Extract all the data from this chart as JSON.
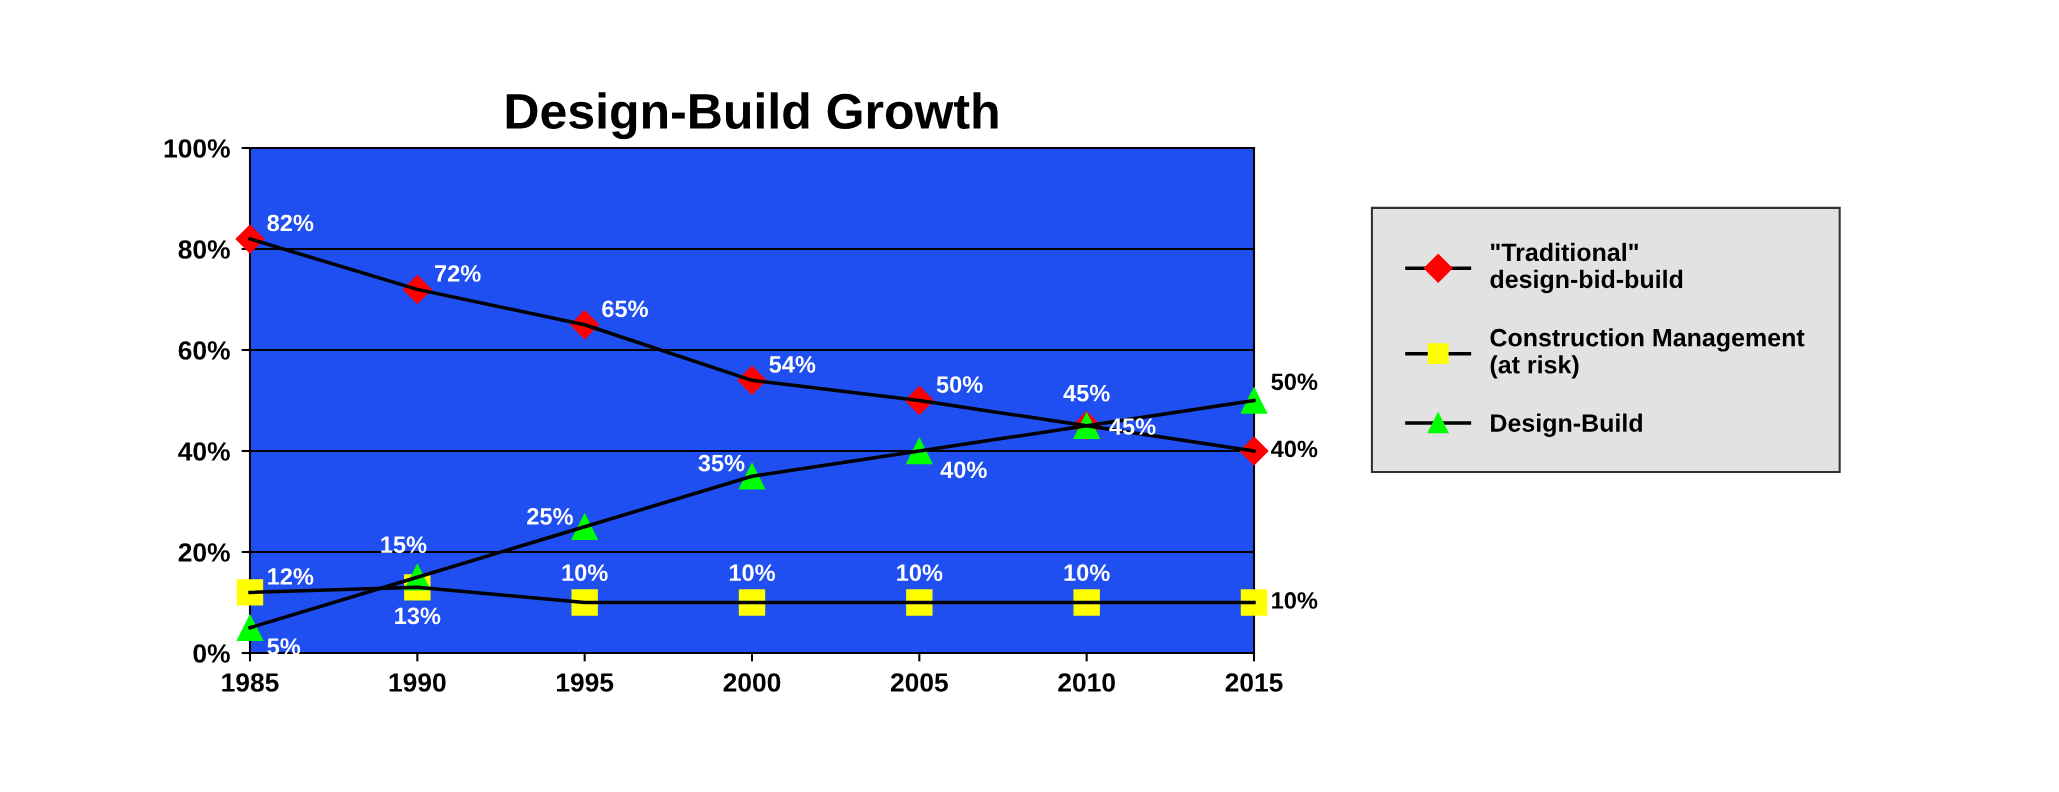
{
  "chart_data": {
    "type": "line",
    "title": "Design-Build Growth",
    "x": [
      1985,
      1990,
      1995,
      2000,
      2005,
      2010,
      2015
    ],
    "series": [
      {
        "name": "\"Traditional\"\ndesign-bid-build",
        "color": "#ff0000",
        "marker": "diamond",
        "values": [
          82,
          72,
          65,
          54,
          50,
          45,
          40
        ],
        "value_labels": [
          "82%",
          "72%",
          "65%",
          "54%",
          "50%",
          "45%",
          "40%"
        ]
      },
      {
        "name": "Construction Management\n(at risk)",
        "color": "#ffff00",
        "marker": "square",
        "values": [
          12,
          13,
          10,
          10,
          10,
          10,
          10
        ],
        "value_labels": [
          "12%",
          "13%",
          "10%",
          "10%",
          "10%",
          "10%",
          "10%"
        ]
      },
      {
        "name": "Design-Build",
        "color": "#00ff00",
        "marker": "triangle",
        "values": [
          5,
          15,
          25,
          35,
          40,
          45,
          50
        ],
        "value_labels": [
          "5%",
          "15%",
          "25%",
          "35%",
          "40%",
          "45%",
          "50%"
        ]
      }
    ],
    "xlim": [
      1985,
      2015
    ],
    "xticks": [
      1985,
      1990,
      1995,
      2000,
      2005,
      2010,
      2015
    ],
    "ylim": [
      0,
      100
    ],
    "yticks": [
      {
        "value": 0,
        "label": "0%"
      },
      {
        "value": 20,
        "label": "20%"
      },
      {
        "value": 40,
        "label": "40%"
      },
      {
        "value": 60,
        "label": "60%"
      },
      {
        "value": 80,
        "label": "80%"
      },
      {
        "value": 100,
        "label": "100%"
      }
    ],
    "data_labels": true,
    "grid": "y",
    "legend": "right",
    "line_style": "solid"
  }
}
